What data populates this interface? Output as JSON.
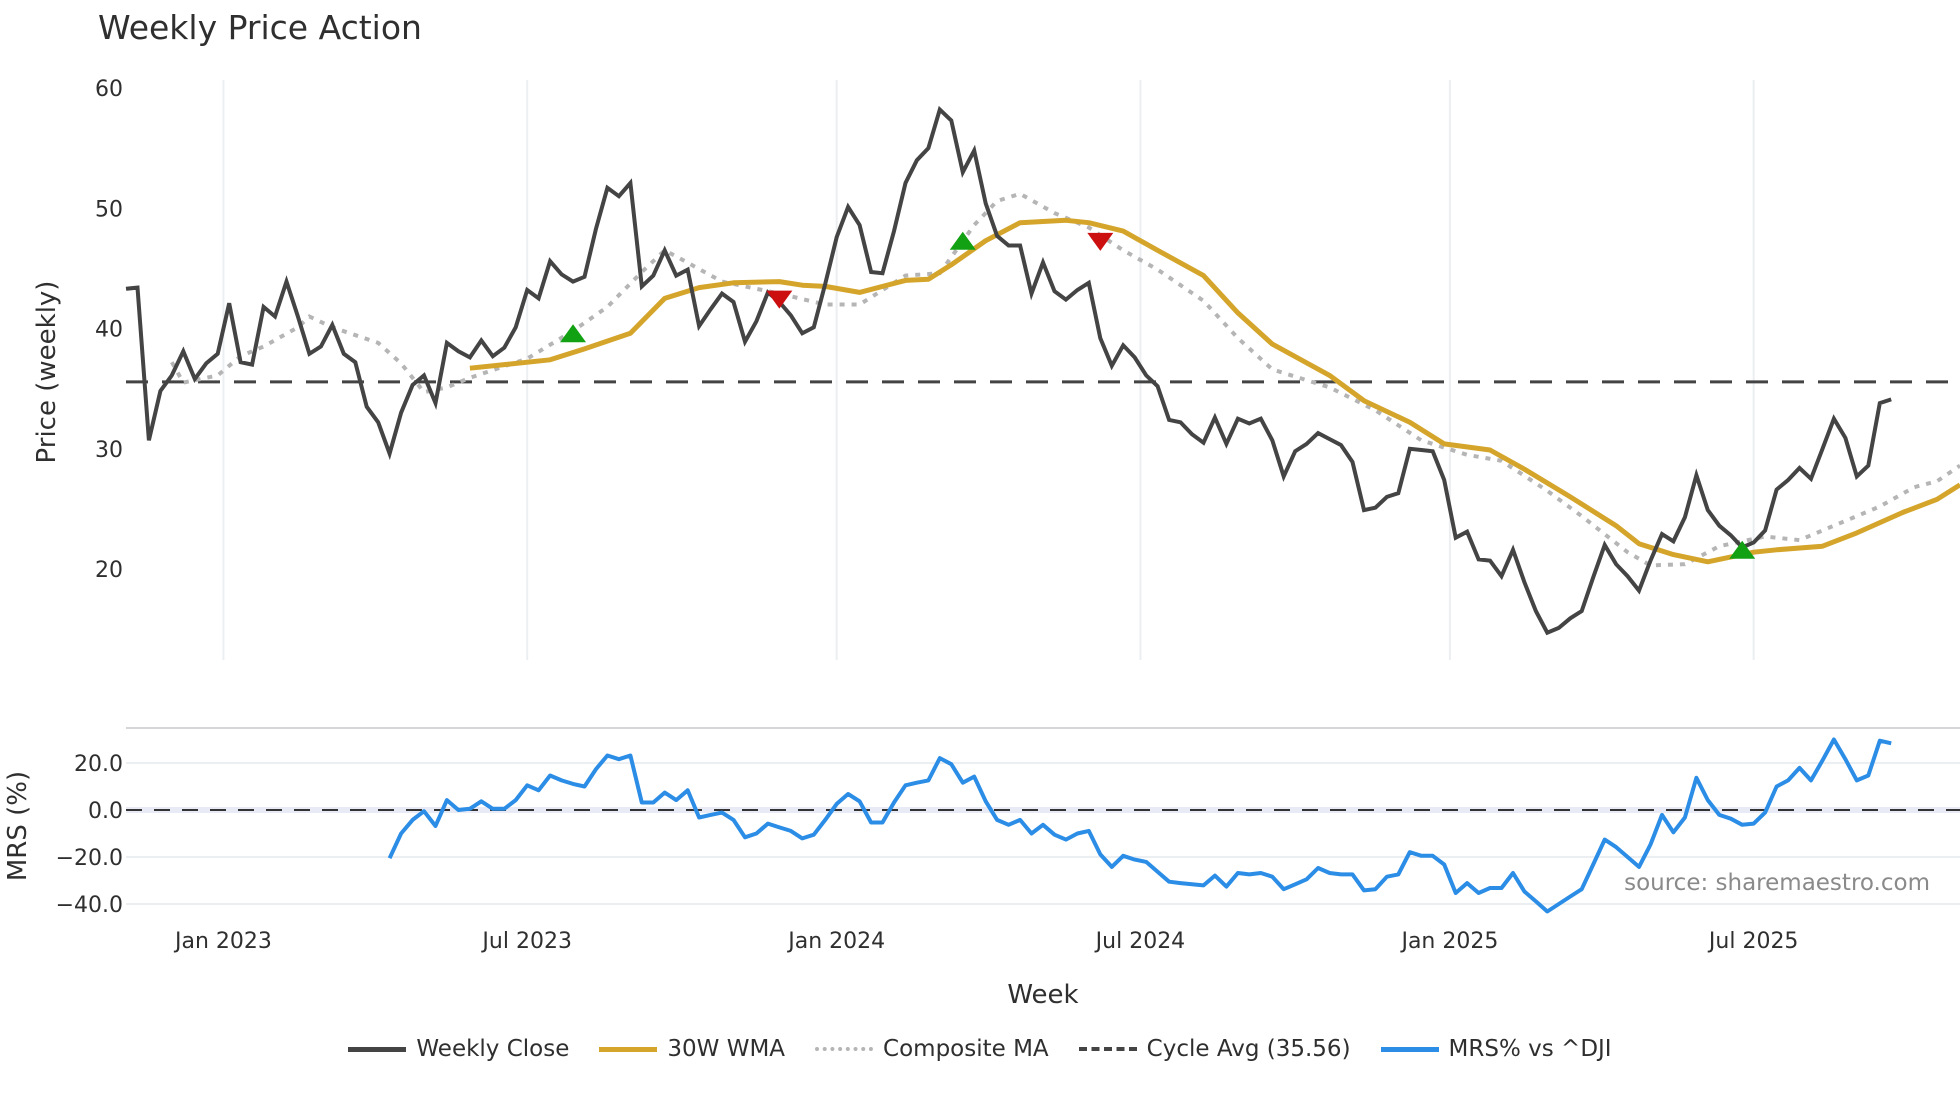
{
  "title": "Weekly Price Action",
  "source_label": "source: sharemaestro.com",
  "colors": {
    "close": "#444444",
    "wma": "#d4a52a",
    "composite": "#b5b5b5",
    "cycle": "#444444",
    "mrs": "#2b8de6",
    "buy": "#12a112",
    "sell": "#cc0f0f",
    "grid": "#eceff2"
  },
  "legend": [
    {
      "label": "Weekly Close",
      "key": "close",
      "style": "solid"
    },
    {
      "label": "30W WMA",
      "key": "wma",
      "style": "solid"
    },
    {
      "label": "Composite MA",
      "key": "composite",
      "style": "dotted"
    },
    {
      "label": "Cycle Avg (35.56)",
      "key": "cycle",
      "style": "dashed"
    },
    {
      "label": "MRS% vs ^DJI",
      "key": "mrs",
      "style": "solid"
    }
  ],
  "chart_data": {
    "type": "line",
    "title": "Weekly Price Action",
    "xlabel": "Week",
    "x_ticks": [
      "Jan 2023",
      "Jul 2023",
      "Jan 2024",
      "Jul 2024",
      "Jan 2025",
      "Jul 2025"
    ],
    "x_tick_weeks": [
      8.5,
      35,
      62,
      88.5,
      115.5,
      142
    ],
    "week_count": 161,
    "panels": [
      {
        "name": "price",
        "ylabel": "Price (weekly)",
        "y_ticks": [
          60,
          50,
          40,
          30,
          20
        ],
        "ylim": [
          12.5,
          62
        ],
        "cycle_avg": 35.56,
        "series": [
          {
            "name": "Weekly Close",
            "start_week": 0,
            "values": [
              43.3,
              43.4,
              30.7,
              34.8,
              36.1,
              38.1,
              35.8,
              37.1,
              37.9,
              42.1,
              37.2,
              37.0,
              41.8,
              41.0,
              43.9,
              41.0,
              37.9,
              38.5,
              40.3,
              37.9,
              37.2,
              33.5,
              32.2,
              29.6,
              33.0,
              35.3,
              36.1,
              33.8,
              38.8,
              38.1,
              37.6,
              39.0,
              37.7,
              38.4,
              40.1,
              43.2,
              42.5,
              45.6,
              44.5,
              43.9,
              44.3,
              48.3,
              51.7,
              51.0,
              52.1,
              43.5,
              44.4,
              46.5,
              44.4,
              44.9,
              40.2,
              41.6,
              42.9,
              42.2,
              38.9,
              40.6,
              43.0,
              42.2,
              41.1,
              39.6,
              40.1,
              43.7,
              47.6,
              50.1,
              48.6,
              44.7,
              44.6,
              48.1,
              52.1,
              54.0,
              55.0,
              58.2,
              57.3,
              53.0,
              54.8,
              50.4,
              47.7,
              46.9,
              46.9,
              42.9,
              45.5,
              43.1,
              42.4,
              43.2,
              43.8,
              39.2,
              36.9,
              38.6,
              37.6,
              36.1,
              35.2,
              32.4,
              32.2,
              31.2,
              30.5,
              32.6,
              30.4,
              32.5,
              32.1,
              32.5,
              30.7,
              27.7,
              29.8,
              30.4,
              31.3,
              30.8,
              30.3,
              28.9,
              24.9,
              25.1,
              26.0,
              26.3,
              30.0,
              29.9,
              29.8,
              27.4,
              22.6,
              23.1,
              20.8,
              20.7,
              19.4,
              21.6,
              18.9,
              16.5,
              14.7,
              15.1,
              15.9,
              16.5,
              19.3,
              22.0,
              20.4,
              19.4,
              18.2,
              20.7,
              22.9,
              22.3,
              24.3,
              27.8,
              24.9,
              23.6,
              22.8,
              21.8,
              22.2,
              23.2,
              26.6,
              27.4,
              28.4,
              27.5,
              30.0,
              32.5,
              30.9,
              27.7,
              28.6,
              33.8,
              34.1
            ]
          },
          {
            "name": "30W WMA",
            "points": [
              [
                30,
                36.7
              ],
              [
                33,
                37.0
              ],
              [
                37,
                37.4
              ],
              [
                40,
                38.3
              ],
              [
                44,
                39.6
              ],
              [
                47,
                42.5
              ],
              [
                50,
                43.4
              ],
              [
                53,
                43.8
              ],
              [
                57,
                43.9
              ],
              [
                59,
                43.6
              ],
              [
                61,
                43.5
              ],
              [
                64,
                43.0
              ],
              [
                68,
                44.0
              ],
              [
                70,
                44.1
              ],
              [
                72,
                45.3
              ],
              [
                75,
                47.3
              ],
              [
                78,
                48.8
              ],
              [
                82,
                49.0
              ],
              [
                84,
                48.8
              ],
              [
                87,
                48.1
              ],
              [
                90,
                46.5
              ],
              [
                94,
                44.4
              ],
              [
                97,
                41.3
              ],
              [
                100,
                38.7
              ],
              [
                105,
                36.1
              ],
              [
                108,
                34.0
              ],
              [
                112,
                32.2
              ],
              [
                115,
                30.4
              ],
              [
                119,
                29.9
              ],
              [
                122,
                28.3
              ],
              [
                126,
                26.0
              ],
              [
                130,
                23.6
              ],
              [
                132,
                22.1
              ],
              [
                135,
                21.2
              ],
              [
                138,
                20.6
              ],
              [
                142,
                21.4
              ],
              [
                144,
                21.6
              ],
              [
                148,
                21.9
              ],
              [
                151,
                23.0
              ],
              [
                155,
                24.7
              ],
              [
                158,
                25.8
              ],
              [
                160,
                27.0
              ]
            ]
          },
          {
            "name": "Composite MA",
            "points": [
              [
                4,
                37.2
              ],
              [
                5,
                35.5
              ],
              [
                8,
                36.1
              ],
              [
                10,
                37.7
              ],
              [
                12,
                38.5
              ],
              [
                15,
                40.1
              ],
              [
                16,
                41.0
              ],
              [
                18,
                40.1
              ],
              [
                22,
                38.8
              ],
              [
                24,
                37.1
              ],
              [
                26,
                34.7
              ],
              [
                28,
                35.1
              ],
              [
                30,
                35.9
              ],
              [
                35,
                37.5
              ],
              [
                39,
                39.8
              ],
              [
                42,
                41.8
              ],
              [
                45,
                44.7
              ],
              [
                47,
                46.5
              ],
              [
                48,
                46.0
              ],
              [
                52,
                43.9
              ],
              [
                57,
                42.9
              ],
              [
                61,
                42.0
              ],
              [
                64,
                42.0
              ],
              [
                68,
                44.4
              ],
              [
                71,
                44.6
              ],
              [
                74,
                48.6
              ],
              [
                76,
                50.6
              ],
              [
                78,
                51.2
              ],
              [
                81,
                49.6
              ],
              [
                84,
                48.4
              ],
              [
                87,
                46.5
              ],
              [
                90,
                44.9
              ],
              [
                94,
                42.3
              ],
              [
                97,
                39.2
              ],
              [
                100,
                36.6
              ],
              [
                105,
                35.1
              ],
              [
                109,
                33.2
              ],
              [
                113,
                30.7
              ],
              [
                117,
                29.5
              ],
              [
                120,
                29.0
              ],
              [
                124,
                26.5
              ],
              [
                127,
                24.4
              ],
              [
                131,
                21.4
              ],
              [
                133,
                20.3
              ],
              [
                136,
                20.4
              ],
              [
                139,
                21.9
              ],
              [
                143,
                22.7
              ],
              [
                146,
                22.4
              ],
              [
                149,
                23.6
              ],
              [
                153,
                25.2
              ],
              [
                156,
                26.8
              ],
              [
                158,
                27.3
              ],
              [
                160,
                28.6
              ]
            ]
          }
        ],
        "signals": [
          {
            "type": "buy",
            "week": 39,
            "price": 39.6
          },
          {
            "type": "sell",
            "week": 57,
            "price": 42.4
          },
          {
            "type": "buy",
            "week": 73,
            "price": 47.3
          },
          {
            "type": "sell",
            "week": 85,
            "price": 47.2
          },
          {
            "type": "buy",
            "week": 141,
            "price": 21.6
          }
        ]
      },
      {
        "name": "mrs",
        "ylabel": "MRS (%)",
        "y_ticks": [
          "20.0",
          "0.0",
          "−20.0",
          "−40.0"
        ],
        "y_tick_values": [
          20,
          0,
          -20,
          -40
        ],
        "ylim": [
          -46,
          35
        ],
        "series": [
          {
            "name": "MRS% vs ^DJI",
            "start_week": 23,
            "values": [
              -20.5,
              -10.0,
              -4.2,
              -0.5,
              -6.8,
              4.2,
              0.0,
              0.5,
              3.7,
              0.5,
              0.5,
              4.2,
              10.5,
              8.4,
              14.7,
              12.6,
              11.1,
              10.0,
              17.4,
              23.2,
              21.6,
              23.2,
              3.2,
              3.2,
              7.4,
              4.2,
              8.4,
              -3.2,
              -2.1,
              -1.1,
              -4.2,
              -11.6,
              -10.0,
              -5.8,
              -7.4,
              -8.9,
              -12.1,
              -10.5,
              -4.2,
              2.6,
              6.8,
              3.7,
              -5.3,
              -5.3,
              3.2,
              10.5,
              11.6,
              12.6,
              22.1,
              19.5,
              11.6,
              14.2,
              3.7,
              -4.2,
              -6.3,
              -4.2,
              -10.0,
              -6.3,
              -10.5,
              -12.6,
              -10.0,
              -8.9,
              -18.9,
              -24.2,
              -19.5,
              -21.1,
              -22.1,
              -26.3,
              -30.5,
              -31.1,
              -31.6,
              -32.1,
              -27.9,
              -32.6,
              -26.8,
              -27.4,
              -26.8,
              -28.4,
              -33.7,
              -31.6,
              -29.5,
              -24.7,
              -26.8,
              -27.4,
              -27.4,
              -34.2,
              -33.7,
              -28.4,
              -27.4,
              -17.9,
              -19.5,
              -19.5,
              -23.2,
              -35.3,
              -31.1,
              -35.3,
              -33.2,
              -33.2,
              -26.8,
              -34.7,
              -38.9,
              -43.2,
              -40.0,
              -36.8,
              -33.7,
              -23.2,
              -12.6,
              -15.8,
              -20.0,
              -24.2,
              -14.7,
              -2.1,
              -9.5,
              -3.2,
              13.7,
              4.2,
              -2.1,
              -3.7,
              -6.3,
              -5.8,
              -1.1,
              10.0,
              12.6,
              17.9,
              12.6,
              21.1,
              30.0,
              21.6,
              12.6,
              14.7,
              29.5,
              28.4
            ]
          }
        ],
        "zero_line": 0
      }
    ],
    "legend_position": "bottom",
    "grid": true
  }
}
